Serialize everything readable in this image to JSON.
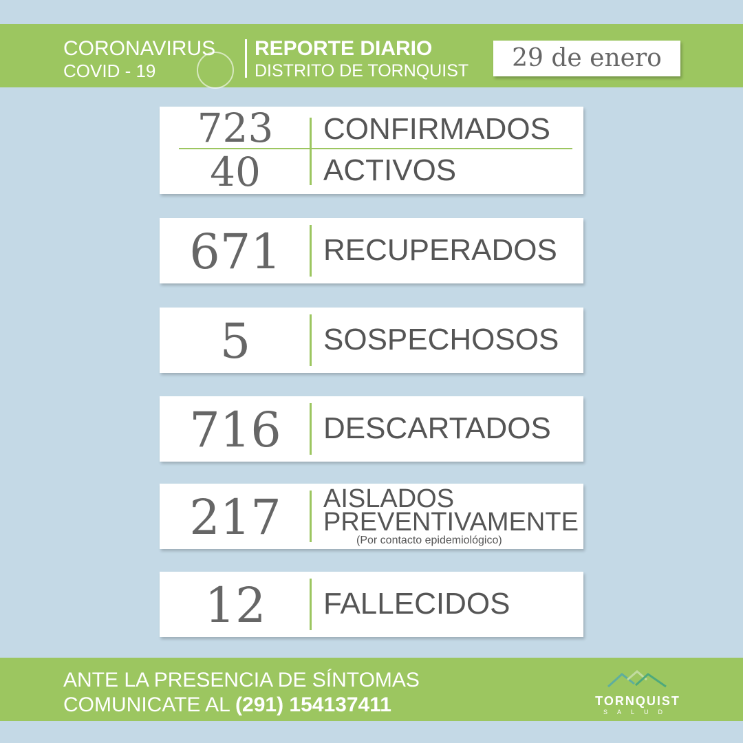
{
  "header": {
    "line1": "CORONAVIRUS",
    "line2": "COVID - 19",
    "title": "REPORTE DIARIO",
    "subtitle": "DISTRITO DE TORNQUIST",
    "date": "29 de enero"
  },
  "stats": [
    {
      "value": "723",
      "label": "CONFIRMADOS"
    },
    {
      "value": "40",
      "label": "ACTIVOS"
    },
    {
      "value": "671",
      "label": "RECUPERADOS"
    },
    {
      "value": "5",
      "label": "SOSPECHOSOS"
    },
    {
      "value": "716",
      "label": "DESCARTADOS"
    },
    {
      "value": "217",
      "label": "AISLADOS",
      "label2": "PREVENTIVAMENTE",
      "note": "(Por contacto epidemiológico)"
    },
    {
      "value": "12",
      "label": "FALLECIDOS"
    }
  ],
  "footer": {
    "line1": "ANTE LA PRESENCIA DE SÍNTOMAS",
    "line2": "COMUNICATE AL",
    "phone": "(291) 154137411",
    "logo": "TORNQUIST",
    "logo_sub": "SALUD"
  },
  "colors": {
    "green": "#9cc660",
    "background": "#c4d9e6"
  }
}
